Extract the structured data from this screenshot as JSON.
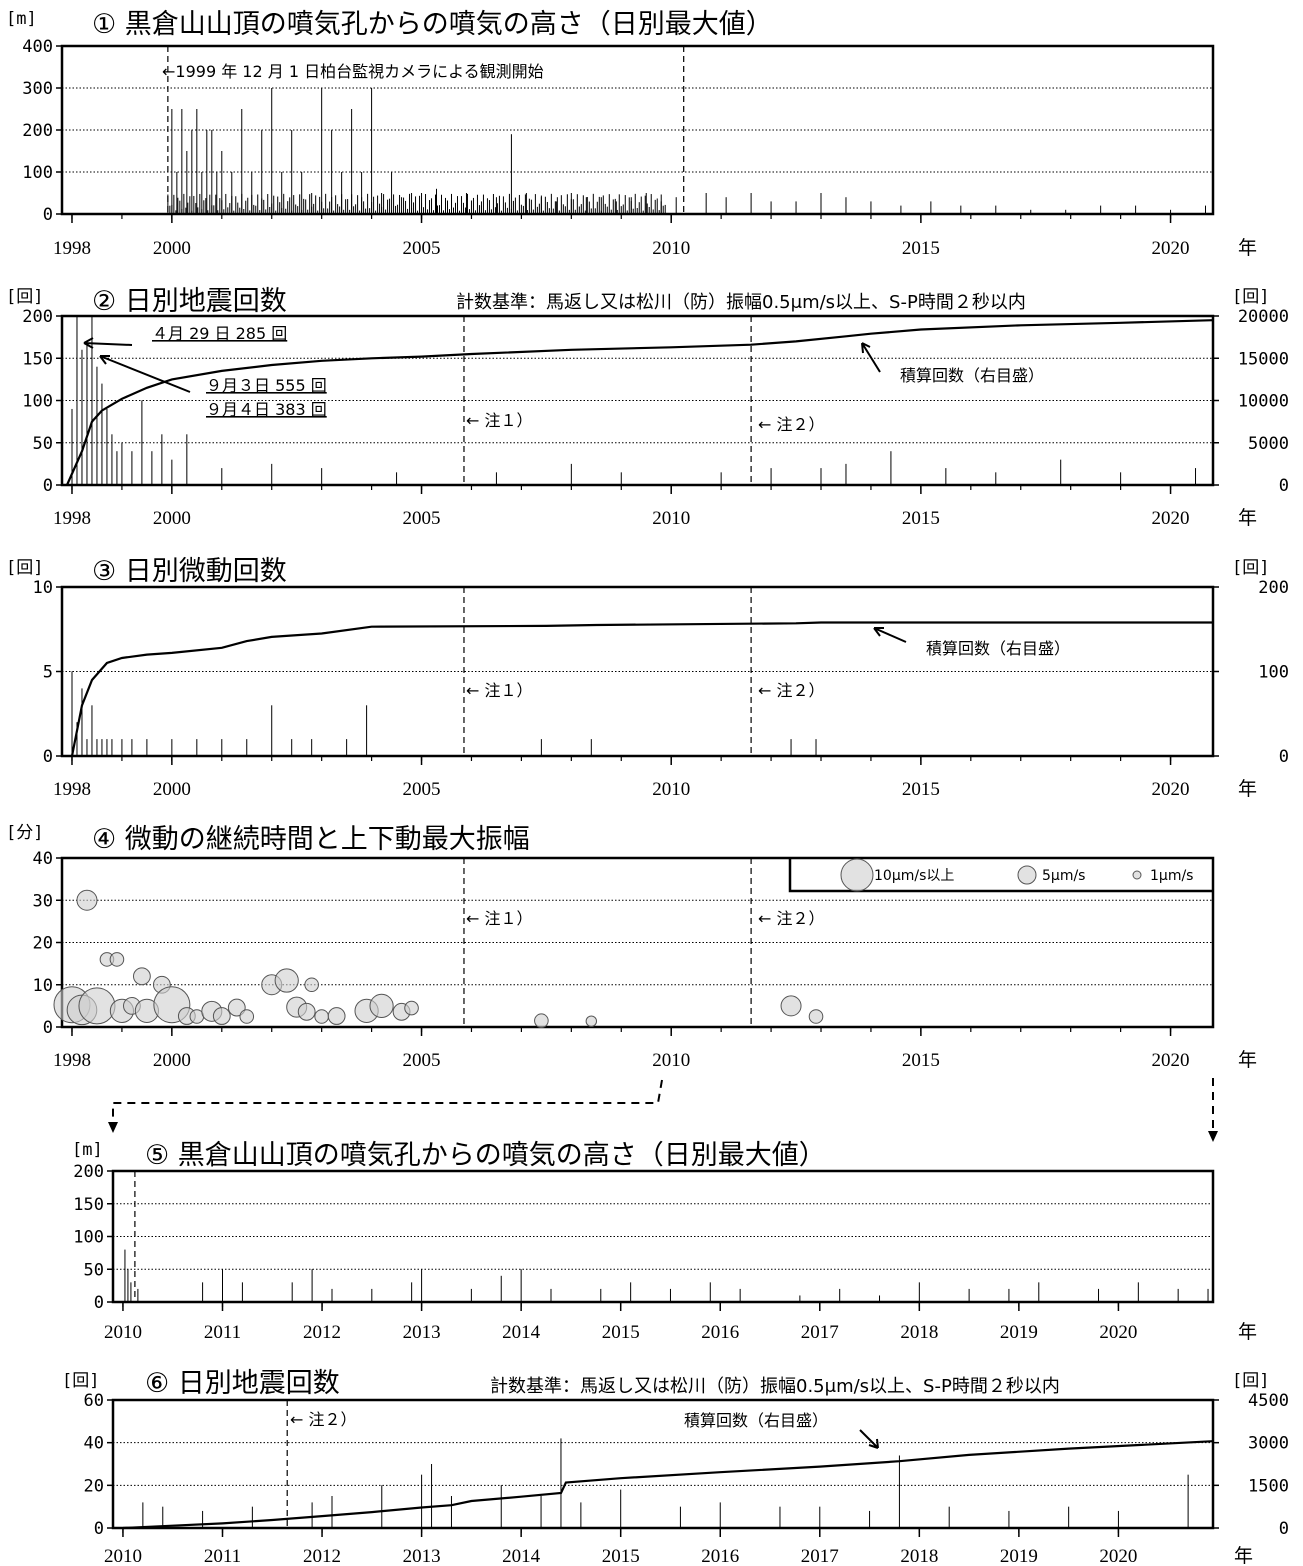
{
  "colors": {
    "ink": "#000000",
    "bubble_fill": "#cfcfcf"
  },
  "chart_data": [
    {
      "id": "p1",
      "type": "bar",
      "title": "① 黒倉山山頂の噴気孔からの噴気の高さ（日別最大値）",
      "ylabel": "[m]",
      "ylim": [
        0,
        400
      ],
      "yticks": [
        "0",
        "100",
        "200",
        "300",
        "400"
      ],
      "xlim": [
        1997.8,
        2020.85
      ],
      "xticks": [
        "1998",
        "2000",
        "2005",
        "2010",
        "2015",
        "2020"
      ],
      "xunit": "年",
      "markers": [
        1999.92,
        2010.25
      ],
      "annotation": "←1999 年 12 月 1 日柏台監視カメラによる観測開始",
      "bars": [
        [
          2000.0,
          250
        ],
        [
          2000.1,
          100
        ],
        [
          2000.2,
          250
        ],
        [
          2000.3,
          150
        ],
        [
          2000.4,
          200
        ],
        [
          2000.5,
          250
        ],
        [
          2000.6,
          100
        ],
        [
          2000.7,
          200
        ],
        [
          2000.8,
          200
        ],
        [
          2000.9,
          100
        ],
        [
          2001.0,
          150
        ],
        [
          2001.2,
          100
        ],
        [
          2001.4,
          250
        ],
        [
          2001.6,
          100
        ],
        [
          2001.8,
          200
        ],
        [
          2002.0,
          300
        ],
        [
          2002.2,
          100
        ],
        [
          2002.4,
          200
        ],
        [
          2002.6,
          100
        ],
        [
          2002.8,
          50
        ],
        [
          2003.0,
          300
        ],
        [
          2003.2,
          200
        ],
        [
          2003.4,
          100
        ],
        [
          2003.6,
          250
        ],
        [
          2003.8,
          100
        ],
        [
          2004.0,
          300
        ],
        [
          2004.2,
          50
        ],
        [
          2004.4,
          100
        ],
        [
          2004.6,
          40
        ],
        [
          2004.8,
          50
        ],
        [
          2005.0,
          50
        ],
        [
          2005.3,
          60
        ],
        [
          2005.6,
          40
        ],
        [
          2005.9,
          50
        ],
        [
          2006.2,
          30
        ],
        [
          2006.5,
          40
        ],
        [
          2006.8,
          190
        ],
        [
          2007.1,
          50
        ],
        [
          2007.4,
          40
        ],
        [
          2007.7,
          30
        ],
        [
          2008.0,
          50
        ],
        [
          2008.3,
          40
        ],
        [
          2008.6,
          40
        ],
        [
          2008.9,
          30
        ],
        [
          2009.2,
          40
        ],
        [
          2009.5,
          50
        ],
        [
          2009.8,
          30
        ],
        [
          2010.1,
          40
        ],
        [
          2010.7,
          50
        ],
        [
          2011.1,
          40
        ],
        [
          2011.6,
          50
        ],
        [
          2012.0,
          30
        ],
        [
          2012.5,
          30
        ],
        [
          2013.0,
          50
        ],
        [
          2013.5,
          40
        ],
        [
          2014.0,
          30
        ],
        [
          2014.6,
          20
        ],
        [
          2015.2,
          30
        ],
        [
          2015.8,
          20
        ],
        [
          2016.5,
          20
        ],
        [
          2017.2,
          10
        ],
        [
          2017.9,
          10
        ],
        [
          2018.6,
          20
        ],
        [
          2019.3,
          20
        ],
        [
          2020.0,
          10
        ],
        [
          2020.7,
          20
        ]
      ]
    },
    {
      "id": "p2",
      "type": "bar",
      "title": "② 日別地震回数",
      "criteria": "計数基準：馬返し又は松川（防）振幅0.5μm/s以上、S-P時間２秒以内",
      "ylabel": "[回]",
      "y2label": "[回]",
      "ylim": [
        0,
        200
      ],
      "y2lim": [
        0,
        20000
      ],
      "yticks": [
        "0",
        "50",
        "100",
        "150",
        "200"
      ],
      "y2ticks": [
        "0",
        "5000",
        "10000",
        "15000",
        "20000"
      ],
      "xlim": [
        1997.8,
        2020.85
      ],
      "xticks": [
        "1998",
        "2000",
        "2005",
        "2010",
        "2015",
        "2020"
      ],
      "xunit": "年",
      "markers": [
        2005.85,
        2011.6
      ],
      "notes": [
        "← 注１）",
        "← 注２）"
      ],
      "annotations": [
        "４月 29 日 285 回",
        "９月３日 555 回",
        "９月４日 383 回",
        "積算回数（右目盛）"
      ],
      "bars": [
        [
          1998.0,
          90
        ],
        [
          1998.1,
          200
        ],
        [
          1998.2,
          160
        ],
        [
          1998.3,
          170
        ],
        [
          1998.4,
          200
        ],
        [
          1998.5,
          140
        ],
        [
          1998.6,
          120
        ],
        [
          1998.7,
          90
        ],
        [
          1998.8,
          60
        ],
        [
          1998.9,
          40
        ],
        [
          1999.0,
          50
        ],
        [
          1999.2,
          40
        ],
        [
          1999.4,
          100
        ],
        [
          1999.6,
          40
        ],
        [
          1999.8,
          60
        ],
        [
          2000.0,
          30
        ],
        [
          2000.3,
          60
        ],
        [
          2001.0,
          20
        ],
        [
          2002.0,
          25
        ],
        [
          2003.0,
          20
        ],
        [
          2004.5,
          15
        ],
        [
          2006.5,
          15
        ],
        [
          2008.0,
          25
        ],
        [
          2009.0,
          15
        ],
        [
          2011.0,
          15
        ],
        [
          2012.0,
          20
        ],
        [
          2013.0,
          20
        ],
        [
          2013.5,
          25
        ],
        [
          2014.4,
          40
        ],
        [
          2015.5,
          20
        ],
        [
          2016.5,
          15
        ],
        [
          2017.8,
          30
        ],
        [
          2019.0,
          15
        ],
        [
          2020.5,
          20
        ]
      ],
      "cumulative": [
        [
          1997.9,
          0
        ],
        [
          1998.2,
          4000
        ],
        [
          1998.4,
          7500
        ],
        [
          1998.6,
          8800
        ],
        [
          1998.8,
          9500
        ],
        [
          1999.0,
          10200
        ],
        [
          1999.5,
          11500
        ],
        [
          2000.0,
          12500
        ],
        [
          2001.0,
          13500
        ],
        [
          2002.0,
          14200
        ],
        [
          2003.0,
          14700
        ],
        [
          2004.0,
          15000
        ],
        [
          2005.0,
          15200
        ],
        [
          2006.0,
          15500
        ],
        [
          2008.0,
          16000
        ],
        [
          2010.0,
          16300
        ],
        [
          2011.6,
          16600
        ],
        [
          2012.5,
          17000
        ],
        [
          2013.5,
          17600
        ],
        [
          2014.0,
          17900
        ],
        [
          2015.0,
          18400
        ],
        [
          2017.0,
          18900
        ],
        [
          2019.0,
          19200
        ],
        [
          2020.85,
          19500
        ]
      ]
    },
    {
      "id": "p3",
      "type": "bar",
      "title": "③ 日別微動回数",
      "ylabel": "[回]",
      "y2label": "[回]",
      "ylim": [
        0,
        10
      ],
      "y2lim": [
        0,
        200
      ],
      "yticks": [
        "0",
        "5",
        "10"
      ],
      "y2ticks": [
        "0",
        "100",
        "200"
      ],
      "xlim": [
        1997.8,
        2020.85
      ],
      "xticks": [
        "1998",
        "2000",
        "2005",
        "2010",
        "2015",
        "2020"
      ],
      "xunit": "年",
      "markers": [
        2005.85,
        2011.6
      ],
      "notes": [
        "← 注１）",
        "← 注２）"
      ],
      "annotations": [
        "積算回数（右目盛）"
      ],
      "bars": [
        [
          1998.0,
          5
        ],
        [
          1998.1,
          2
        ],
        [
          1998.2,
          4
        ],
        [
          1998.3,
          1
        ],
        [
          1998.4,
          3
        ],
        [
          1998.5,
          1
        ],
        [
          1998.6,
          1
        ],
        [
          1998.7,
          1
        ],
        [
          1998.8,
          1
        ],
        [
          1999.0,
          1
        ],
        [
          1999.2,
          1
        ],
        [
          1999.5,
          1
        ],
        [
          2000.0,
          1
        ],
        [
          2000.5,
          1
        ],
        [
          2001.0,
          1
        ],
        [
          2001.5,
          1
        ],
        [
          2002.0,
          3
        ],
        [
          2002.4,
          1
        ],
        [
          2002.8,
          1
        ],
        [
          2003.5,
          1
        ],
        [
          2003.9,
          3
        ],
        [
          2007.4,
          1
        ],
        [
          2008.4,
          1
        ],
        [
          2012.4,
          1
        ],
        [
          2012.9,
          1
        ]
      ],
      "cumulative": [
        [
          1998.0,
          0
        ],
        [
          1998.2,
          60
        ],
        [
          1998.4,
          90
        ],
        [
          1998.7,
          110
        ],
        [
          1999.0,
          116
        ],
        [
          1999.5,
          120
        ],
        [
          2000.0,
          122
        ],
        [
          2001.0,
          128
        ],
        [
          2001.5,
          136
        ],
        [
          2002.0,
          141
        ],
        [
          2003.0,
          145
        ],
        [
          2004.0,
          153
        ],
        [
          2007.5,
          154
        ],
        [
          2008.5,
          155
        ],
        [
          2012.5,
          157
        ],
        [
          2013.0,
          158
        ],
        [
          2020.85,
          158
        ]
      ]
    },
    {
      "id": "p4",
      "type": "scatter",
      "title": "④ 微動の継続時間と上下動最大振幅",
      "ylabel": "[分]",
      "ylim": [
        0,
        40
      ],
      "yticks": [
        "0",
        "10",
        "20",
        "30",
        "40"
      ],
      "xlim": [
        1997.8,
        2020.85
      ],
      "xticks": [
        "1998",
        "2000",
        "2005",
        "2010",
        "2015",
        "2020"
      ],
      "xunit": "年",
      "markers": [
        2005.85,
        2011.6
      ],
      "notes": [
        "← 注１）",
        "← 注２）"
      ],
      "legend": [
        "10μm/s以上",
        "5μm/s",
        "1μm/s"
      ],
      "points": [
        [
          1998.3,
          30,
          5
        ],
        [
          1998.0,
          4,
          10
        ],
        [
          1998.2,
          3,
          8
        ],
        [
          1998.5,
          5,
          10
        ],
        [
          1998.7,
          16,
          3
        ],
        [
          1998.9,
          16,
          3
        ],
        [
          1999.0,
          3,
          6
        ],
        [
          1999.2,
          5,
          4
        ],
        [
          1999.4,
          12,
          4
        ],
        [
          1999.5,
          3,
          6
        ],
        [
          1999.8,
          10,
          4
        ],
        [
          2000.0,
          4,
          10
        ],
        [
          2000.3,
          2,
          4
        ],
        [
          2000.5,
          2,
          3
        ],
        [
          2000.8,
          3,
          5
        ],
        [
          2001.0,
          2,
          4
        ],
        [
          2001.3,
          4,
          4
        ],
        [
          2001.5,
          2,
          3
        ],
        [
          2002.0,
          10,
          5
        ],
        [
          2002.3,
          11,
          6
        ],
        [
          2002.5,
          4,
          5
        ],
        [
          2002.7,
          3,
          4
        ],
        [
          2002.8,
          10,
          3
        ],
        [
          2003.0,
          2,
          3
        ],
        [
          2003.3,
          2,
          4
        ],
        [
          2003.9,
          3,
          6
        ],
        [
          2004.2,
          5,
          6
        ],
        [
          2004.6,
          3,
          4
        ],
        [
          2004.8,
          4,
          3
        ],
        [
          2007.4,
          1,
          3
        ],
        [
          2008.4,
          1,
          2
        ],
        [
          2012.4,
          5,
          5
        ],
        [
          2012.9,
          2,
          3
        ]
      ]
    },
    {
      "id": "p5",
      "type": "bar",
      "title": "⑤ 黒倉山山頂の噴気孔からの噴気の高さ（日別最大値）",
      "ylabel": "[m]",
      "ylim": [
        0,
        200
      ],
      "yticks": [
        "0",
        "50",
        "100",
        "150",
        "200"
      ],
      "xlim": [
        2009.9,
        2020.95
      ],
      "xticks": [
        "2010",
        "2011",
        "2012",
        "2013",
        "2014",
        "2015",
        "2016",
        "2017",
        "2018",
        "2019",
        "2020"
      ],
      "xunit": "年",
      "markers": [
        2010.12
      ],
      "bars": [
        [
          2010.02,
          80
        ],
        [
          2010.05,
          50
        ],
        [
          2010.08,
          30
        ],
        [
          2010.15,
          20
        ],
        [
          2010.8,
          30
        ],
        [
          2011.0,
          50
        ],
        [
          2011.2,
          30
        ],
        [
          2011.7,
          30
        ],
        [
          2011.9,
          50
        ],
        [
          2012.1,
          20
        ],
        [
          2012.5,
          20
        ],
        [
          2012.9,
          30
        ],
        [
          2013.0,
          50
        ],
        [
          2013.5,
          20
        ],
        [
          2013.8,
          40
        ],
        [
          2014.0,
          50
        ],
        [
          2014.3,
          20
        ],
        [
          2014.8,
          20
        ],
        [
          2015.1,
          30
        ],
        [
          2015.5,
          20
        ],
        [
          2015.9,
          30
        ],
        [
          2016.2,
          20
        ],
        [
          2016.8,
          10
        ],
        [
          2017.2,
          20
        ],
        [
          2017.6,
          10
        ],
        [
          2018.0,
          30
        ],
        [
          2018.5,
          20
        ],
        [
          2018.9,
          20
        ],
        [
          2019.2,
          30
        ],
        [
          2019.8,
          20
        ],
        [
          2020.2,
          30
        ],
        [
          2020.6,
          20
        ],
        [
          2020.9,
          20
        ]
      ]
    },
    {
      "id": "p6",
      "type": "bar",
      "title": "⑥ 日別地震回数",
      "criteria": "計数基準：馬返し又は松川（防）振幅0.5μm/s以上、S-P時間２秒以内",
      "ylabel": "[回]",
      "y2label": "[回]",
      "ylim": [
        0,
        60
      ],
      "y2lim": [
        0,
        4500
      ],
      "yticks": [
        "0",
        "20",
        "40",
        "60"
      ],
      "y2ticks": [
        "0",
        "1500",
        "3000",
        "4500"
      ],
      "xlim": [
        2009.9,
        2020.95
      ],
      "xticks": [
        "2010",
        "2011",
        "2012",
        "2013",
        "2014",
        "2015",
        "2016",
        "2017",
        "2018",
        "2019",
        "2020"
      ],
      "xunit": "年",
      "markers": [
        2011.65
      ],
      "notes": [
        "← 注２）"
      ],
      "annotations": [
        "積算回数（右目盛）"
      ],
      "bars": [
        [
          2010.2,
          12
        ],
        [
          2010.4,
          10
        ],
        [
          2010.8,
          8
        ],
        [
          2011.3,
          10
        ],
        [
          2011.9,
          12
        ],
        [
          2012.1,
          15
        ],
        [
          2012.6,
          20
        ],
        [
          2013.0,
          25
        ],
        [
          2013.1,
          30
        ],
        [
          2013.3,
          15
        ],
        [
          2013.8,
          20
        ],
        [
          2014.2,
          15
        ],
        [
          2014.4,
          42
        ],
        [
          2014.6,
          12
        ],
        [
          2015.0,
          18
        ],
        [
          2015.6,
          10
        ],
        [
          2016.0,
          12
        ],
        [
          2016.6,
          10
        ],
        [
          2017.0,
          10
        ],
        [
          2017.5,
          8
        ],
        [
          2017.8,
          34
        ],
        [
          2018.3,
          10
        ],
        [
          2018.9,
          8
        ],
        [
          2019.5,
          10
        ],
        [
          2020.0,
          8
        ],
        [
          2020.7,
          25
        ]
      ],
      "cumulative": [
        [
          2010.0,
          0
        ],
        [
          2010.5,
          80
        ],
        [
          2011.0,
          160
        ],
        [
          2011.5,
          280
        ],
        [
          2012.0,
          420
        ],
        [
          2012.5,
          560
        ],
        [
          2013.0,
          720
        ],
        [
          2013.3,
          800
        ],
        [
          2013.5,
          950
        ],
        [
          2014.0,
          1100
        ],
        [
          2014.4,
          1230
        ],
        [
          2014.45,
          1600
        ],
        [
          2015.0,
          1750
        ],
        [
          2016.0,
          1960
        ],
        [
          2017.0,
          2160
        ],
        [
          2017.8,
          2350
        ],
        [
          2018.5,
          2570
        ],
        [
          2019.5,
          2790
        ],
        [
          2020.95,
          3050
        ]
      ]
    }
  ]
}
